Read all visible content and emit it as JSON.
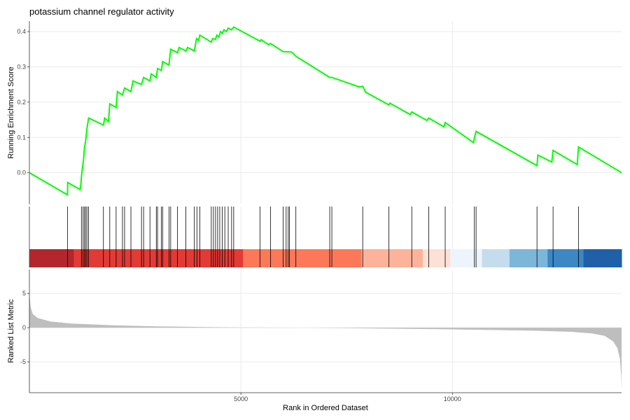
{
  "chart_data": {
    "type": "line",
    "title": "potassium channel regulator activity",
    "xlabel": "Rank in Ordered Dataset",
    "xlim": [
      0,
      14000
    ],
    "x_ticks": [
      5000,
      10000
    ],
    "x_tick_labels": [
      "5000",
      "10000"
    ],
    "grid": true,
    "panels": {
      "enrichment": {
        "ylabel": "Running Enrichment Score",
        "ylim": [
          -0.09,
          0.43
        ],
        "y_ticks": [
          0.0,
          0.1,
          0.2,
          0.3,
          0.4
        ],
        "y_tick_labels": [
          "0.0",
          "0.1",
          "0.2",
          "0.3",
          "0.4"
        ],
        "line_color": "#00ff00",
        "series": [
          {
            "points": [
              [
                0,
                0.0
              ],
              [
                900,
                -0.063
              ],
              [
                905,
                -0.028
              ],
              [
                1200,
                -0.048
              ],
              [
                1220,
                -0.03
              ],
              [
                1230,
                -0.012
              ],
              [
                1250,
                0.01
              ],
              [
                1280,
                0.035
              ],
              [
                1300,
                0.07
              ],
              [
                1330,
                0.09
              ],
              [
                1360,
                0.125
              ],
              [
                1400,
                0.155
              ],
              [
                1750,
                0.135
              ],
              [
                1780,
                0.155
              ],
              [
                1870,
                0.145
              ],
              [
                1900,
                0.195
              ],
              [
                2050,
                0.185
              ],
              [
                2080,
                0.23
              ],
              [
                2200,
                0.22
              ],
              [
                2250,
                0.24
              ],
              [
                2400,
                0.23
              ],
              [
                2450,
                0.26
              ],
              [
                2650,
                0.25
              ],
              [
                2700,
                0.27
              ],
              [
                2850,
                0.26
              ],
              [
                2880,
                0.28
              ],
              [
                3000,
                0.27
              ],
              [
                3030,
                0.295
              ],
              [
                3120,
                0.29
              ],
              [
                3150,
                0.315
              ],
              [
                3300,
                0.305
              ],
              [
                3340,
                0.35
              ],
              [
                3500,
                0.34
              ],
              [
                3540,
                0.355
              ],
              [
                3700,
                0.345
              ],
              [
                3740,
                0.355
              ],
              [
                3900,
                0.345
              ],
              [
                3950,
                0.38
              ],
              [
                4000,
                0.375
              ],
              [
                4030,
                0.39
              ],
              [
                4300,
                0.37
              ],
              [
                4330,
                0.38
              ],
              [
                4400,
                0.378
              ],
              [
                4430,
                0.39
              ],
              [
                4480,
                0.385
              ],
              [
                4520,
                0.4
              ],
              [
                4560,
                0.395
              ],
              [
                4600,
                0.405
              ],
              [
                4660,
                0.4
              ],
              [
                4700,
                0.41
              ],
              [
                4780,
                0.405
              ],
              [
                4830,
                0.413
              ],
              [
                5450,
                0.373
              ],
              [
                5480,
                0.377
              ],
              [
                5650,
                0.363
              ],
              [
                5700,
                0.366
              ],
              [
                6000,
                0.343
              ],
              [
                6200,
                0.342
              ],
              [
                6300,
                0.33
              ],
              [
                7100,
                0.27
              ],
              [
                7150,
                0.27
              ],
              [
                7800,
                0.243
              ],
              [
                7880,
                0.245
              ],
              [
                7950,
                0.228
              ],
              [
                8500,
                0.192
              ],
              [
                8520,
                0.197
              ],
              [
                9000,
                0.165
              ],
              [
                9040,
                0.172
              ],
              [
                9400,
                0.148
              ],
              [
                9440,
                0.155
              ],
              [
                9800,
                0.13
              ],
              [
                9830,
                0.142
              ],
              [
                10500,
                0.085
              ],
              [
                10520,
                0.098
              ],
              [
                10560,
                0.117
              ],
              [
                12000,
                0.02
              ],
              [
                12020,
                0.05
              ],
              [
                12350,
                0.03
              ],
              [
                12380,
                0.063
              ],
              [
                12950,
                0.023
              ],
              [
                12980,
                0.073
              ],
              [
                14000,
                0.0
              ]
            ]
          }
        ]
      },
      "hits": {
        "positions": [
          900,
          1230,
          1270,
          1300,
          1330,
          1360,
          1400,
          1750,
          1900,
          2050,
          2200,
          2250,
          2400,
          2650,
          2700,
          2850,
          3000,
          3030,
          3120,
          3150,
          3300,
          3340,
          3500,
          3700,
          3900,
          3960,
          4030,
          4300,
          4350,
          4400,
          4450,
          4500,
          4560,
          4620,
          4700,
          4780,
          4830,
          5450,
          5700,
          6000,
          6070,
          6120,
          6150,
          6300,
          7100,
          7150,
          7880,
          8500,
          9040,
          9440,
          9830,
          10520,
          10560,
          12000,
          12380,
          12980
        ]
      },
      "color_bar": {
        "segments": [
          {
            "start": 0,
            "end": 1050,
            "color": "#b2272d"
          },
          {
            "start": 1050,
            "end": 5050,
            "color": "#e23b35"
          },
          {
            "start": 5050,
            "end": 7850,
            "color": "#fb7859"
          },
          {
            "start": 7850,
            "end": 9300,
            "color": "#fcb39a"
          },
          {
            "start": 9300,
            "end": 9950,
            "color": "#fde1d4"
          },
          {
            "start": 9950,
            "end": 10700,
            "color": "#eef4fb"
          },
          {
            "start": 10700,
            "end": 11350,
            "color": "#c5dcec"
          },
          {
            "start": 11350,
            "end": 12250,
            "color": "#7cb7da"
          },
          {
            "start": 12250,
            "end": 13100,
            "color": "#3b88c4"
          },
          {
            "start": 13100,
            "end": 14000,
            "color": "#1f60a8"
          }
        ]
      },
      "ranked_metric": {
        "ylabel": "Ranked List Metric",
        "ylim": [
          -9.5,
          8.5
        ],
        "y_ticks": [
          -5,
          0,
          5
        ],
        "y_tick_labels": [
          "-5",
          "0",
          "5"
        ],
        "fill_color": "#bebebe",
        "series": [
          {
            "points": [
              [
                0,
                5.0
              ],
              [
                30,
                3.0
              ],
              [
                80,
                2.0
              ],
              [
                200,
                1.4
              ],
              [
                500,
                0.9
              ],
              [
                1000,
                0.6
              ],
              [
                2000,
                0.35
              ],
              [
                3000,
                0.2
              ],
              [
                4000,
                0.1
              ],
              [
                5000,
                0.03
              ],
              [
                6500,
                0.0
              ],
              [
                8000,
                -0.1
              ],
              [
                9500,
                -0.2
              ],
              [
                11000,
                -0.35
              ],
              [
                12000,
                -0.45
              ],
              [
                12800,
                -0.6
              ],
              [
                13300,
                -0.85
              ],
              [
                13600,
                -1.2
              ],
              [
                13800,
                -2.0
              ],
              [
                13900,
                -3.0
              ],
              [
                13960,
                -4.5
              ],
              [
                13990,
                -7.0
              ],
              [
                14000,
                -9.0
              ]
            ]
          }
        ]
      }
    }
  }
}
